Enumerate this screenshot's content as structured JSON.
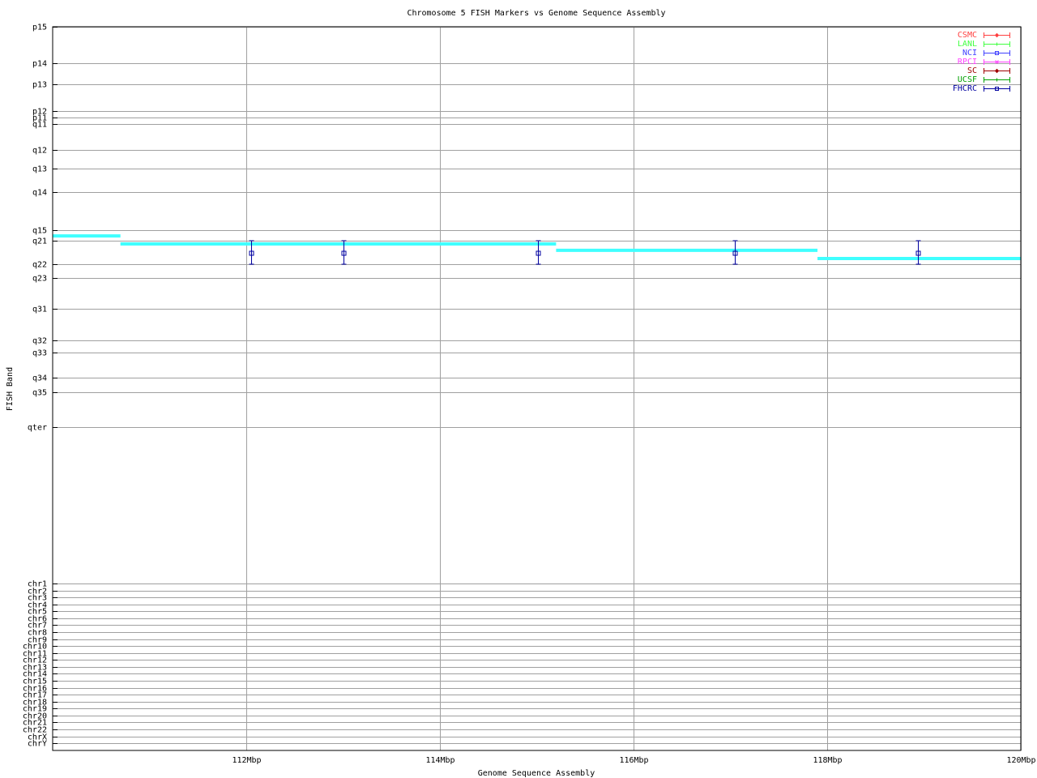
{
  "chart_data": {
    "type": "scatter",
    "title": "Chromosome 5 FISH Markers vs Genome Sequence Assembly",
    "xlabel": "Genome Sequence Assembly",
    "ylabel": "FISH Band",
    "xlim": [
      110,
      120
    ],
    "x_ticks": [
      {
        "value": 112,
        "label": "112Mbp"
      },
      {
        "value": 114,
        "label": "114Mbp"
      },
      {
        "value": 116,
        "label": "116Mbp"
      },
      {
        "value": 118,
        "label": "118Mbp"
      },
      {
        "value": 120,
        "label": "120Mbp"
      }
    ],
    "y_ticks": [
      "p15",
      "p14",
      "p13",
      "p12",
      "p11",
      "q11",
      "q12",
      "q13",
      "q14",
      "q15",
      "q21",
      "q22",
      "q23",
      "q31",
      "q32",
      "q33",
      "q34",
      "q35",
      "qter",
      "chr1",
      "chr2",
      "chr3",
      "chr4",
      "chr5",
      "chr6",
      "chr7",
      "chr8",
      "chr9",
      "chr10",
      "chr11",
      "chr12",
      "chr13",
      "chr14",
      "chr15",
      "chr16",
      "chr17",
      "chr18",
      "chr19",
      "chr20",
      "chr21",
      "chr22",
      "chrX",
      "chrY"
    ],
    "grid": true,
    "legend_position": "top-right",
    "legend": [
      {
        "name": "CSMC",
        "color": "#ff4040",
        "marker": "diamond"
      },
      {
        "name": "LANL",
        "color": "#40ff40",
        "marker": "plus"
      },
      {
        "name": "NCI",
        "color": "#4040ff",
        "marker": "square"
      },
      {
        "name": "RPCI",
        "color": "#ff40ff",
        "marker": "cross"
      },
      {
        "name": "SC",
        "color": "#a00000",
        "marker": "diamond"
      },
      {
        "name": "UCSF",
        "color": "#00a000",
        "marker": "plus"
      },
      {
        "name": "FHCRC",
        "color": "#0000a0",
        "marker": "square"
      }
    ],
    "assembly_segments": {
      "color": "#40ffff",
      "segments": [
        {
          "x_start": 110.0,
          "x_end": 110.7,
          "band_from": "q15",
          "band_to": "q21",
          "position": 0.55
        },
        {
          "x_start": 110.7,
          "x_end": 115.2,
          "band_from": "q21",
          "band_to": "q22",
          "position": 0.14
        },
        {
          "x_start": 115.2,
          "x_end": 117.9,
          "band_from": "q21",
          "band_to": "q22",
          "position": 0.41
        },
        {
          "x_start": 117.9,
          "x_end": 120.0,
          "band_from": "q21",
          "band_to": "q22",
          "position": 0.76
        }
      ]
    },
    "series": [
      {
        "name": "FHCRC",
        "points": [
          {
            "x": 112.05,
            "band_low": "q21",
            "band_high": "q22"
          },
          {
            "x": 113.0,
            "band_low": "q21",
            "band_high": "q22"
          },
          {
            "x": 115.01,
            "band_low": "q21",
            "band_high": "q22"
          },
          {
            "x": 117.05,
            "band_low": "q21",
            "band_high": "q22"
          },
          {
            "x": 118.94,
            "band_low": "q21",
            "band_high": "q22"
          }
        ]
      }
    ]
  }
}
